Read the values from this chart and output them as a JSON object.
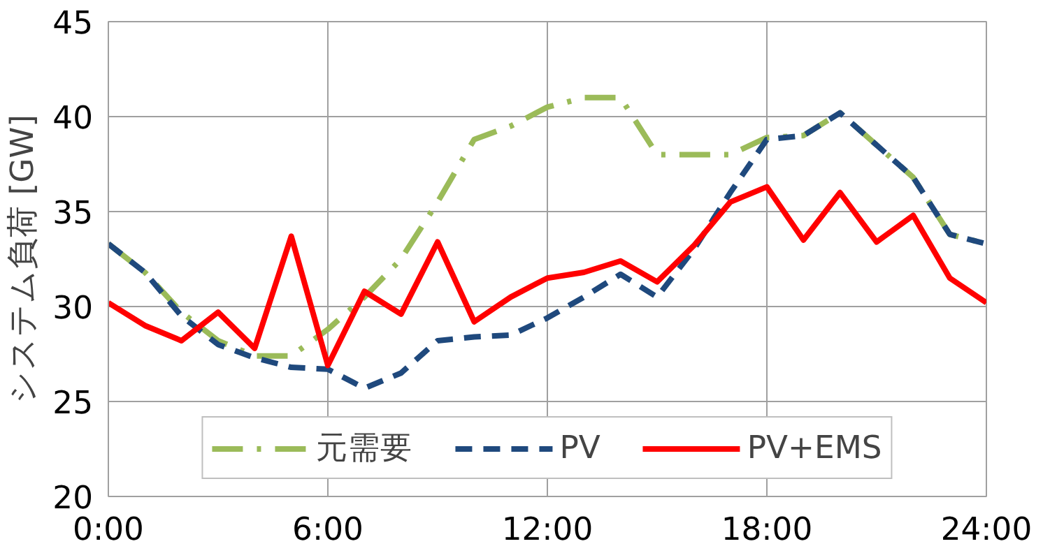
{
  "chart_data": {
    "type": "line",
    "ylabel": "システム負荷 [GW]",
    "x": [
      0,
      1,
      2,
      3,
      4,
      5,
      6,
      7,
      8,
      9,
      10,
      11,
      12,
      13,
      14,
      15,
      16,
      17,
      18,
      19,
      20,
      21,
      22,
      23,
      24
    ],
    "xlim": [
      0,
      24
    ],
    "xticks": [
      {
        "value": 0,
        "label": "0:00"
      },
      {
        "value": 6,
        "label": "6:00"
      },
      {
        "value": 12,
        "label": "12:00"
      },
      {
        "value": 18,
        "label": "18:00"
      },
      {
        "value": 24,
        "label": "24:00"
      }
    ],
    "ylim": [
      20,
      45
    ],
    "yticks": [
      20,
      25,
      30,
      35,
      40,
      45
    ],
    "grid": true,
    "legend": "bottom",
    "marker": "none",
    "series": [
      {
        "name": "元需要",
        "color": "#9bbb59",
        "line_style": "dashdot",
        "values": [
          33.3,
          31.8,
          29.7,
          28.2,
          27.4,
          27.4,
          28.8,
          30.5,
          32.5,
          35.5,
          38.8,
          39.5,
          40.5,
          41.0,
          41.0,
          38.0,
          38.0,
          38.0,
          38.9,
          39.0,
          40.2,
          38.5,
          36.8,
          33.8,
          33.3
        ]
      },
      {
        "name": "PV",
        "color": "#1f497d",
        "line_style": "dashed",
        "values": [
          33.3,
          31.8,
          29.5,
          28.0,
          27.3,
          26.8,
          26.7,
          25.7,
          26.5,
          28.2,
          28.4,
          28.5,
          29.4,
          30.5,
          31.7,
          30.5,
          33.0,
          36.0,
          38.8,
          39.0,
          40.2,
          38.5,
          36.8,
          33.8,
          33.3
        ]
      },
      {
        "name": "PV+EMS",
        "color": "#ff0000",
        "line_style": "solid",
        "values": [
          30.2,
          29.0,
          28.2,
          29.7,
          27.8,
          33.7,
          26.9,
          30.8,
          29.6,
          33.4,
          29.2,
          30.5,
          31.5,
          31.8,
          32.4,
          31.3,
          33.2,
          35.5,
          36.3,
          33.5,
          36.0,
          33.4,
          34.8,
          31.5,
          30.2
        ]
      }
    ]
  }
}
